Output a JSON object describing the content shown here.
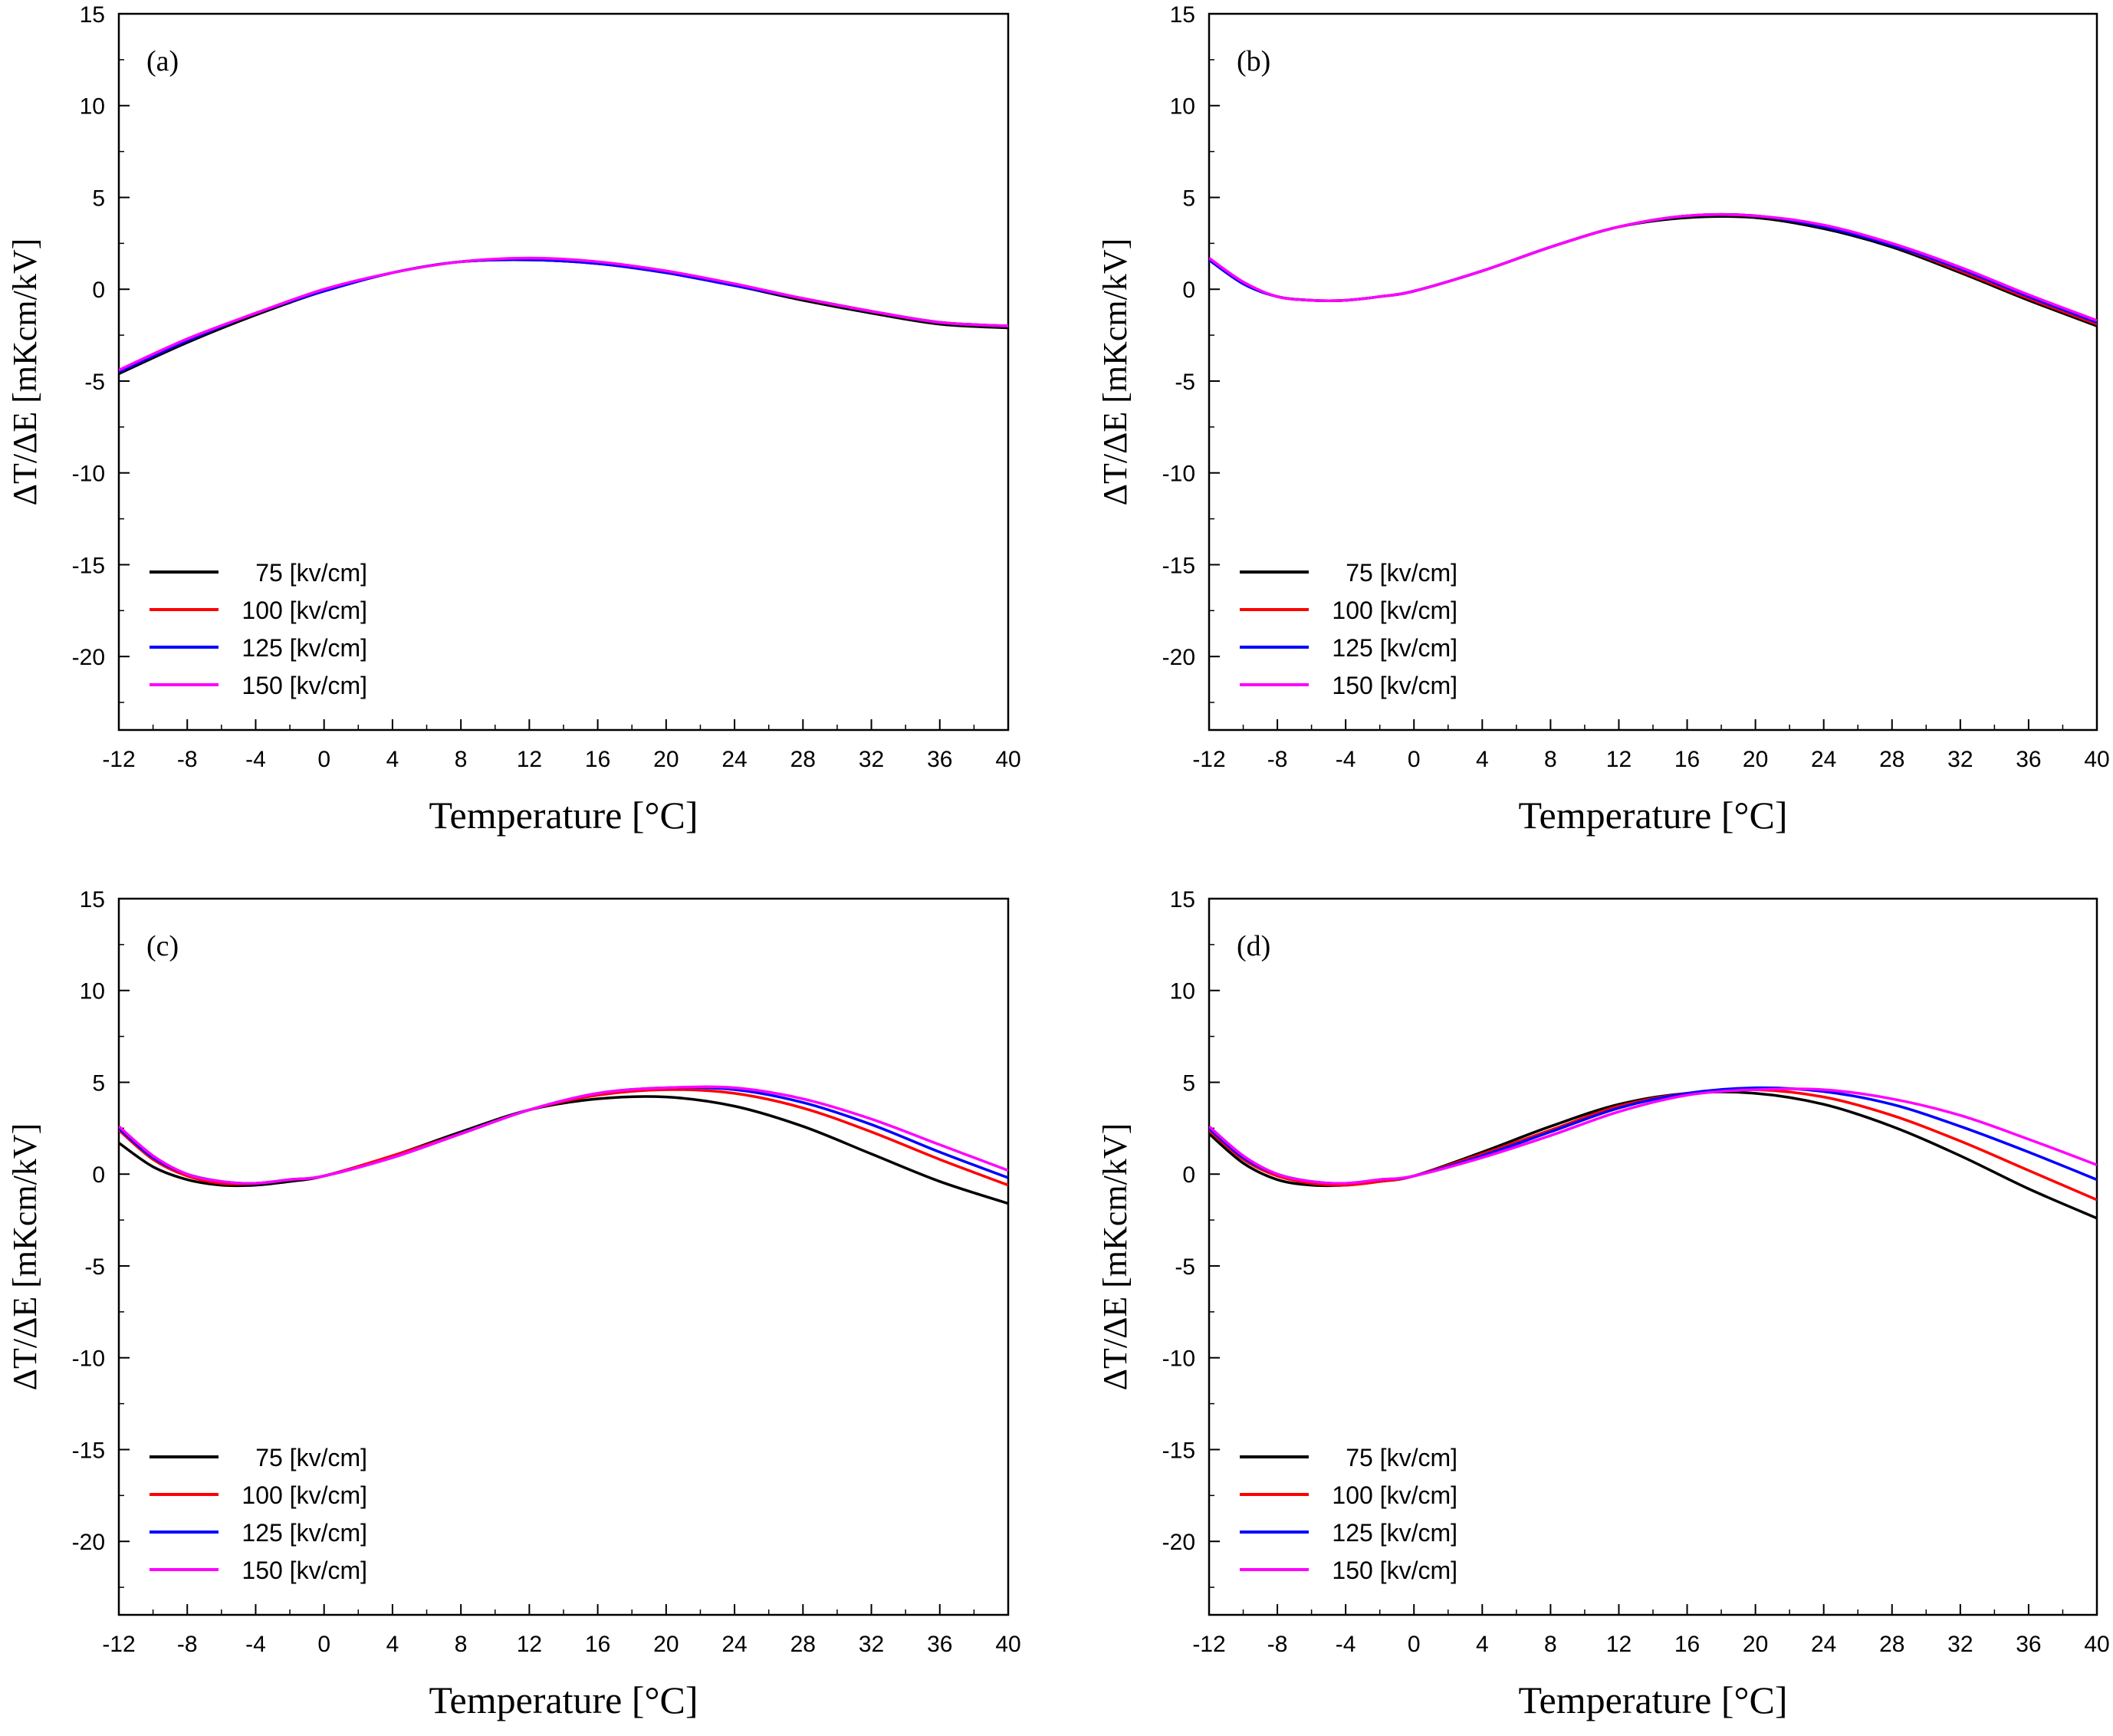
{
  "colors": {
    "75 [kv/cm]": "#000000",
    "100 [kv/cm]": "#ff0000",
    "125 [kv/cm]": "#0000ff",
    "150 [kv/cm]": "#ff00ff"
  },
  "chart_data": [
    {
      "type": "line",
      "panel": "(a)",
      "xlabel": "Temperature [°C]",
      "ylabel": "ΔT/ΔE [mKcm/kV]",
      "xlim": [
        -12,
        40
      ],
      "ylim": [
        -24,
        15
      ],
      "xticks": [
        -12,
        -8,
        -4,
        0,
        4,
        8,
        12,
        16,
        20,
        24,
        28,
        32,
        36,
        40
      ],
      "yticks": [
        -20,
        -15,
        -10,
        -5,
        0,
        5,
        10,
        15
      ],
      "x": [
        -12,
        -8,
        -4,
        0,
        4,
        8,
        12,
        16,
        20,
        24,
        28,
        32,
        36,
        40
      ],
      "legend_position": "lower-left",
      "series": [
        {
          "name": "75 [kv/cm]",
          "values": [
            -4.6,
            -2.9,
            -1.4,
            -0.1,
            0.9,
            1.5,
            1.6,
            1.4,
            0.9,
            0.2,
            -0.6,
            -1.3,
            -1.9,
            -2.1
          ]
        },
        {
          "name": "100 [kv/cm]",
          "values": [
            -4.5,
            -2.8,
            -1.3,
            -0.1,
            0.9,
            1.5,
            1.6,
            1.4,
            0.9,
            0.2,
            -0.5,
            -1.2,
            -1.8,
            -2.0
          ]
        },
        {
          "name": "125 [kv/cm]",
          "values": [
            -4.5,
            -2.8,
            -1.3,
            -0.1,
            0.9,
            1.5,
            1.6,
            1.4,
            0.9,
            0.2,
            -0.5,
            -1.2,
            -1.8,
            -2.0
          ]
        },
        {
          "name": "150 [kv/cm]",
          "values": [
            -4.4,
            -2.7,
            -1.3,
            0.0,
            0.9,
            1.5,
            1.7,
            1.5,
            1.0,
            0.3,
            -0.5,
            -1.2,
            -1.8,
            -2.0
          ]
        }
      ]
    },
    {
      "type": "line",
      "panel": "(b)",
      "xlabel": "Temperature [°C]",
      "ylabel": "ΔT/ΔE [mKcm/kV]",
      "xlim": [
        -12,
        40
      ],
      "ylim": [
        -24,
        15
      ],
      "xticks": [
        -12,
        -8,
        -4,
        0,
        4,
        8,
        12,
        16,
        20,
        24,
        28,
        32,
        36,
        40
      ],
      "yticks": [
        -20,
        -15,
        -10,
        -5,
        0,
        5,
        10,
        15
      ],
      "x": [
        -12,
        -10,
        -8,
        -6,
        -4,
        -2,
        0,
        4,
        8,
        12,
        16,
        20,
        24,
        28,
        32,
        36,
        40
      ],
      "legend_position": "lower-left",
      "series": [
        {
          "name": "75 [kv/cm]",
          "values": [
            1.6,
            0.3,
            -0.4,
            -0.6,
            -0.6,
            -0.4,
            -0.1,
            1.0,
            2.3,
            3.4,
            3.9,
            3.9,
            3.3,
            2.3,
            0.9,
            -0.6,
            -2.0
          ]
        },
        {
          "name": "100 [kv/cm]",
          "values": [
            1.6,
            0.3,
            -0.4,
            -0.6,
            -0.6,
            -0.4,
            -0.1,
            1.0,
            2.3,
            3.4,
            4.0,
            4.0,
            3.4,
            2.4,
            1.0,
            -0.5,
            -1.9
          ]
        },
        {
          "name": "125 [kv/cm]",
          "values": [
            1.6,
            0.3,
            -0.4,
            -0.6,
            -0.6,
            -0.4,
            -0.1,
            1.0,
            2.3,
            3.4,
            4.0,
            4.0,
            3.4,
            2.4,
            1.1,
            -0.4,
            -1.8
          ]
        },
        {
          "name": "150 [kv/cm]",
          "values": [
            1.7,
            0.4,
            -0.4,
            -0.6,
            -0.6,
            -0.4,
            -0.1,
            1.0,
            2.3,
            3.4,
            4.0,
            4.0,
            3.5,
            2.5,
            1.2,
            -0.3,
            -1.7
          ]
        }
      ]
    },
    {
      "type": "line",
      "panel": "(c)",
      "xlabel": "Temperature [°C]",
      "ylabel": "ΔT/ΔE [mKcm/kV]",
      "xlim": [
        -12,
        40
      ],
      "ylim": [
        -24,
        15
      ],
      "xticks": [
        -12,
        -8,
        -4,
        0,
        4,
        8,
        12,
        16,
        20,
        24,
        28,
        32,
        36,
        40
      ],
      "yticks": [
        -20,
        -15,
        -10,
        -5,
        0,
        5,
        10,
        15
      ],
      "x": [
        -12,
        -10,
        -8,
        -6,
        -4,
        -2,
        0,
        4,
        8,
        12,
        16,
        20,
        24,
        28,
        32,
        36,
        40
      ],
      "legend_position": "lower-left",
      "series": [
        {
          "name": "75 [kv/cm]",
          "values": [
            1.7,
            0.4,
            -0.3,
            -0.6,
            -0.6,
            -0.4,
            -0.1,
            1.0,
            2.3,
            3.5,
            4.1,
            4.2,
            3.7,
            2.6,
            1.1,
            -0.4,
            -1.6
          ]
        },
        {
          "name": "100 [kv/cm]",
          "values": [
            2.4,
            0.8,
            -0.1,
            -0.5,
            -0.5,
            -0.3,
            -0.1,
            1.0,
            2.2,
            3.5,
            4.3,
            4.6,
            4.4,
            3.6,
            2.3,
            0.8,
            -0.6
          ]
        },
        {
          "name": "125 [kv/cm]",
          "values": [
            2.5,
            0.9,
            0.0,
            -0.4,
            -0.5,
            -0.3,
            -0.1,
            0.9,
            2.2,
            3.5,
            4.4,
            4.7,
            4.6,
            3.9,
            2.7,
            1.2,
            -0.2
          ]
        },
        {
          "name": "150 [kv/cm]",
          "values": [
            2.6,
            1.0,
            0.0,
            -0.4,
            -0.5,
            -0.3,
            -0.1,
            0.9,
            2.2,
            3.5,
            4.4,
            4.7,
            4.7,
            4.1,
            3.0,
            1.6,
            0.2
          ]
        }
      ]
    },
    {
      "type": "line",
      "panel": "(d)",
      "xlabel": "Temperature [°C]",
      "ylabel": "ΔT/ΔE [mKcm/kV]",
      "xlim": [
        -12,
        40
      ],
      "ylim": [
        -24,
        15
      ],
      "xticks": [
        -12,
        -8,
        -4,
        0,
        4,
        8,
        12,
        16,
        20,
        24,
        28,
        32,
        36,
        40
      ],
      "yticks": [
        -20,
        -15,
        -10,
        -5,
        0,
        5,
        10,
        15
      ],
      "x": [
        -12,
        -10,
        -8,
        -6,
        -4,
        -2,
        0,
        4,
        8,
        12,
        16,
        20,
        24,
        28,
        32,
        36,
        40
      ],
      "legend_position": "lower-left",
      "series": [
        {
          "name": "75 [kv/cm]",
          "values": [
            2.2,
            0.6,
            -0.3,
            -0.6,
            -0.6,
            -0.4,
            -0.1,
            1.2,
            2.6,
            3.8,
            4.4,
            4.4,
            3.8,
            2.6,
            1.0,
            -0.8,
            -2.4
          ]
        },
        {
          "name": "100 [kv/cm]",
          "values": [
            2.4,
            0.8,
            -0.1,
            -0.5,
            -0.6,
            -0.4,
            -0.1,
            1.1,
            2.4,
            3.7,
            4.4,
            4.6,
            4.2,
            3.2,
            1.8,
            0.2,
            -1.4
          ]
        },
        {
          "name": "125 [kv/cm]",
          "values": [
            2.5,
            0.9,
            0.0,
            -0.4,
            -0.5,
            -0.3,
            -0.1,
            1.0,
            2.3,
            3.6,
            4.4,
            4.7,
            4.5,
            3.8,
            2.6,
            1.2,
            -0.3
          ]
        },
        {
          "name": "150 [kv/cm]",
          "values": [
            2.6,
            1.0,
            0.0,
            -0.4,
            -0.5,
            -0.3,
            -0.1,
            0.9,
            2.1,
            3.4,
            4.3,
            4.6,
            4.6,
            4.1,
            3.2,
            1.9,
            0.5
          ]
        }
      ]
    }
  ]
}
